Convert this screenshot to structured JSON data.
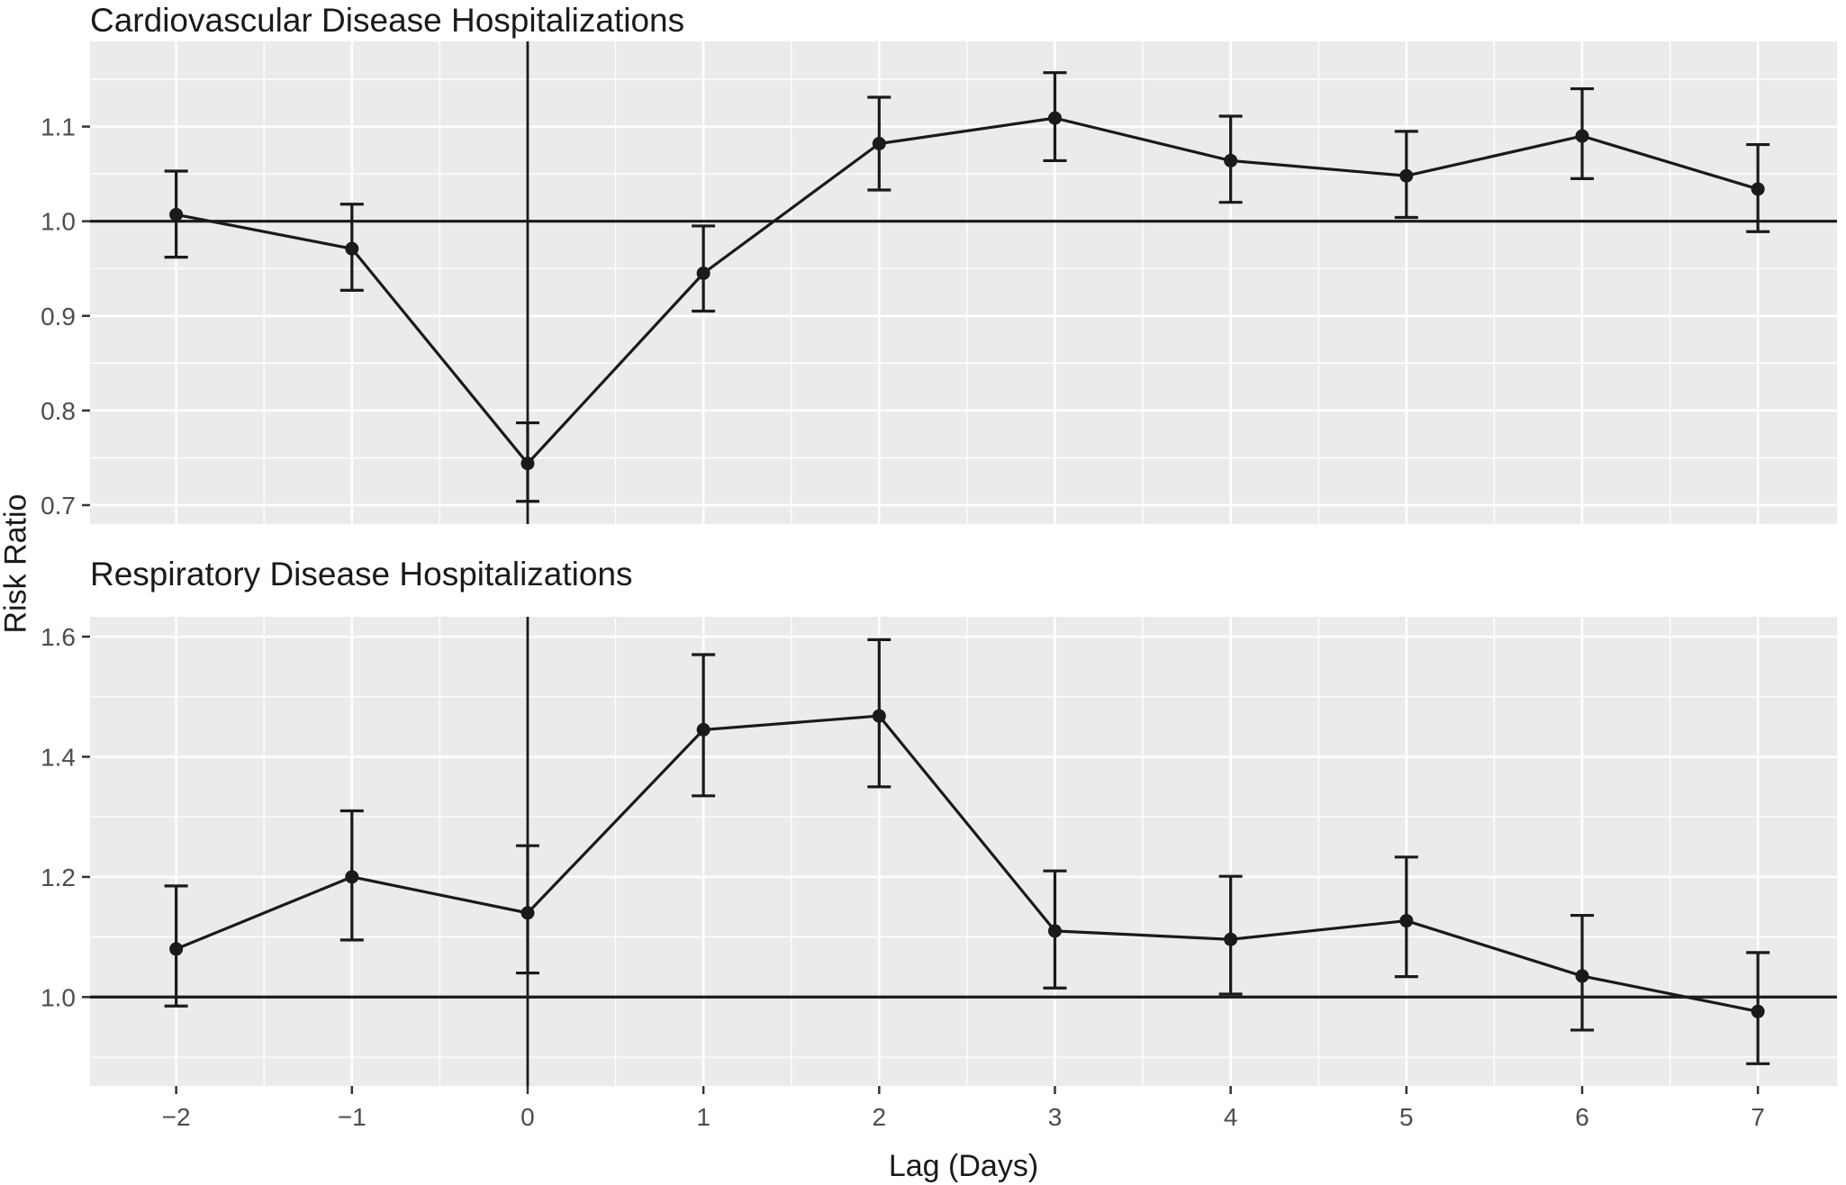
{
  "figure": {
    "y_axis_label": "Risk Ratio",
    "x_axis_label": "Lag (Days)",
    "colors": {
      "panel_background": "#ebebeb",
      "gridline": "#ffffff",
      "ink": "#1a1a1a",
      "axis_text": "#4d4d4d",
      "tick_mark": "#333333"
    }
  },
  "x_axis": {
    "ticks": [
      -2,
      -1,
      0,
      1,
      2,
      3,
      4,
      5,
      6,
      7
    ],
    "labels": [
      "−2",
      "−1",
      "0",
      "1",
      "2",
      "3",
      "4",
      "5",
      "6",
      "7"
    ]
  },
  "chart_data": [
    {
      "type": "line",
      "title": "Cardiovascular Disease Hospitalizations",
      "xlabel": "Lag (Days)",
      "ylabel": "Risk Ratio",
      "x": [
        -2,
        -1,
        0,
        1,
        2,
        3,
        4,
        5,
        6,
        7
      ],
      "series": [
        {
          "name": "Risk Ratio",
          "values": [
            1.007,
            0.971,
            0.744,
            0.945,
            1.082,
            1.109,
            1.064,
            1.048,
            1.09,
            1.034
          ]
        }
      ],
      "ci_lower": [
        0.962,
        0.927,
        0.704,
        0.905,
        1.033,
        1.064,
        1.02,
        1.004,
        1.045,
        0.989
      ],
      "ci_upper": [
        1.053,
        1.018,
        0.787,
        0.995,
        1.131,
        1.157,
        1.111,
        1.095,
        1.14,
        1.081
      ],
      "ylim": [
        0.68,
        1.19
      ],
      "xlim": [
        -2.49,
        7.45
      ],
      "yticks": [
        0.7,
        0.8,
        0.9,
        1.0,
        1.1
      ],
      "ytick_labels": [
        "0.7",
        "0.8",
        "0.9",
        "1.0",
        "1.1"
      ],
      "yminor": [
        0.75,
        0.85,
        0.95,
        1.05,
        1.15
      ],
      "ref_hline": 1.0,
      "ref_vline": 0,
      "grid": "on",
      "legend": "none"
    },
    {
      "type": "line",
      "title": "Respiratory Disease Hospitalizations",
      "xlabel": "Lag (Days)",
      "ylabel": "Risk Ratio",
      "x": [
        -2,
        -1,
        0,
        1,
        2,
        3,
        4,
        5,
        6,
        7
      ],
      "series": [
        {
          "name": "Risk Ratio",
          "values": [
            1.08,
            1.2,
            1.14,
            1.445,
            1.468,
            1.11,
            1.096,
            1.127,
            1.035,
            0.976
          ]
        }
      ],
      "ci_lower": [
        0.985,
        1.095,
        1.04,
        1.335,
        1.35,
        1.015,
        1.005,
        1.034,
        0.945,
        0.889
      ],
      "ci_upper": [
        1.185,
        1.31,
        1.252,
        1.57,
        1.595,
        1.21,
        1.201,
        1.233,
        1.136,
        1.074
      ],
      "ylim": [
        0.852,
        1.633
      ],
      "xlim": [
        -2.49,
        7.45
      ],
      "yticks": [
        1.0,
        1.2,
        1.4,
        1.6
      ],
      "ytick_labels": [
        "1.0",
        "1.2",
        "1.4",
        "1.6"
      ],
      "yminor": [
        0.9,
        1.1,
        1.3,
        1.5
      ],
      "ref_hline": 1.0,
      "ref_vline": 0,
      "grid": "on",
      "legend": "none"
    }
  ]
}
